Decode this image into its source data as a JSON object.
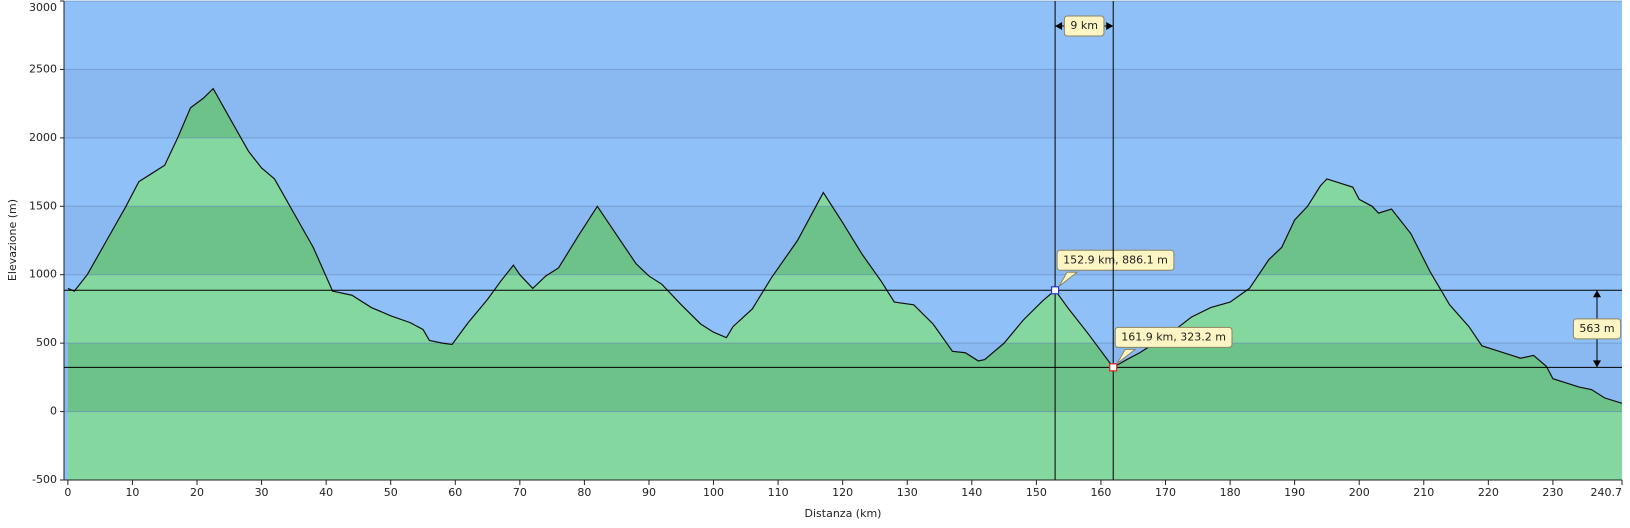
{
  "chart_data": {
    "type": "area",
    "xlabel": "Distanza   (km)",
    "ylabel": "Elevazione (m)",
    "x": [
      0,
      1,
      3,
      6,
      9,
      11,
      13,
      15,
      17,
      19,
      21,
      22.5,
      25,
      28,
      30,
      32,
      35,
      38,
      41,
      44,
      47,
      50,
      53,
      55,
      56,
      58,
      59.5,
      62,
      65,
      67,
      69,
      70,
      72,
      74,
      76,
      79,
      82,
      85,
      88,
      90,
      92,
      95,
      98,
      100,
      102,
      103,
      106,
      109,
      113,
      117,
      120,
      123,
      126,
      128,
      131,
      134,
      137,
      139,
      141,
      142,
      145,
      148,
      151,
      152.9,
      155,
      158,
      161.9,
      164,
      166,
      168,
      171,
      174,
      177,
      180,
      183,
      186,
      188,
      190,
      192,
      194,
      195,
      197,
      199,
      200,
      202,
      203,
      205,
      206,
      208,
      211,
      214,
      217,
      219,
      221,
      223,
      225,
      227,
      229,
      230,
      232,
      234,
      236,
      238,
      240.7
    ],
    "values": [
      900,
      880,
      1000,
      1250,
      1500,
      1680,
      1740,
      1800,
      2000,
      2220,
      2290,
      2360,
      2150,
      1900,
      1780,
      1700,
      1450,
      1200,
      880,
      850,
      760,
      700,
      650,
      600,
      520,
      500,
      490,
      650,
      820,
      950,
      1070,
      1000,
      900,
      990,
      1050,
      1280,
      1500,
      1290,
      1080,
      990,
      930,
      780,
      640,
      580,
      540,
      620,
      750,
      980,
      1250,
      1600,
      1380,
      1150,
      950,
      800,
      780,
      640,
      440,
      430,
      370,
      380,
      500,
      670,
      810,
      886.1,
      750,
      570,
      323.2,
      380,
      430,
      490,
      580,
      690,
      760,
      800,
      900,
      1110,
      1200,
      1400,
      1500,
      1650,
      1700,
      1670,
      1640,
      1550,
      1500,
      1450,
      1480,
      1420,
      1300,
      1020,
      780,
      620,
      480,
      450,
      420,
      390,
      410,
      330,
      240,
      210,
      180,
      160,
      100,
      60
    ],
    "xlim": [
      -0.6,
      240.7
    ],
    "ylim": [
      -500,
      3000
    ],
    "xticks": [
      0,
      10,
      20,
      30,
      40,
      50,
      60,
      70,
      80,
      90,
      100,
      110,
      120,
      130,
      140,
      150,
      160,
      170,
      180,
      190,
      200,
      210,
      220,
      230,
      240.7
    ],
    "yticks": [
      -500,
      0,
      500,
      1000,
      1500,
      2000,
      2500,
      3000
    ],
    "grid": true,
    "fill_colors": [
      "#84d89f",
      "#6cc288"
    ],
    "sky_colors": [
      "#8fc0f8",
      "#8ab9f2"
    ],
    "markers": [
      {
        "x": 152.9,
        "y": 886.1,
        "label": "152.9 km, 886.1 m",
        "color": "#2233dd"
      },
      {
        "x": 161.9,
        "y": 323.2,
        "label": "161.9 km, 323.2 m",
        "color": "#dd2222"
      }
    ],
    "distance_label": "9 km",
    "elevation_label": "563 m"
  }
}
